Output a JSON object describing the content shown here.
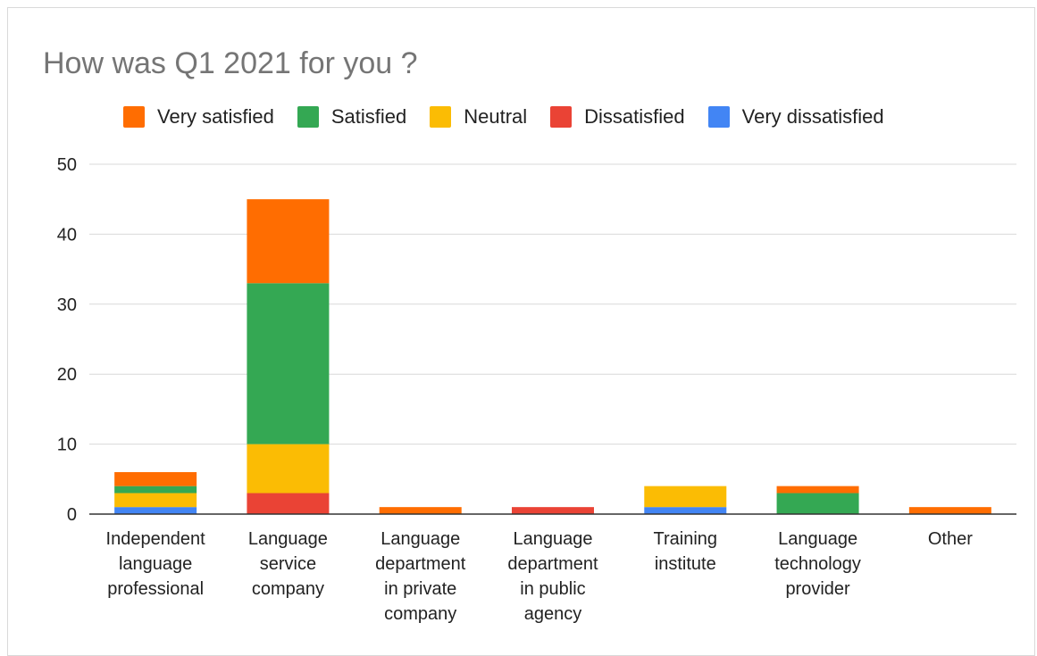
{
  "chart_data": {
    "type": "bar",
    "stacked": true,
    "title": "How was Q1 2021 for you ?",
    "xlabel": "",
    "ylabel": "",
    "ylim": [
      0,
      50
    ],
    "yticks": [
      0,
      10,
      20,
      30,
      40,
      50
    ],
    "grid": true,
    "legend_position": "top",
    "categories": [
      "Independent language professional",
      "Language service company",
      "Language department in private company",
      "Language department in public agency",
      "Training institute",
      "Language technology provider",
      "Other"
    ],
    "category_label_lines": [
      [
        "Independent",
        "language",
        "professional"
      ],
      [
        "Language",
        "service",
        "company"
      ],
      [
        "Language",
        "department",
        "in private",
        "company"
      ],
      [
        "Language",
        "department",
        "in public",
        "agency"
      ],
      [
        "Training",
        "institute"
      ],
      [
        "Language",
        "technology",
        "provider"
      ],
      [
        "Other"
      ]
    ],
    "series": [
      {
        "name": "Very dissatisfied",
        "color": "#4285f4",
        "values": [
          1,
          0,
          0,
          0,
          1,
          0,
          0
        ]
      },
      {
        "name": "Dissatisfied",
        "color": "#ea4335",
        "values": [
          0,
          3,
          0,
          1,
          0,
          0,
          0
        ]
      },
      {
        "name": "Neutral",
        "color": "#fbbc04",
        "values": [
          2,
          7,
          0,
          0,
          3,
          0,
          0
        ]
      },
      {
        "name": "Satisfied",
        "color": "#34a853",
        "values": [
          1,
          23,
          0,
          0,
          0,
          3,
          0
        ]
      },
      {
        "name": "Very satisfied",
        "color": "#ff6d01",
        "values": [
          2,
          12,
          1,
          0,
          0,
          1,
          1
        ]
      }
    ],
    "legend_order": [
      "Very satisfied",
      "Satisfied",
      "Neutral",
      "Dissatisfied",
      "Very dissatisfied"
    ]
  }
}
